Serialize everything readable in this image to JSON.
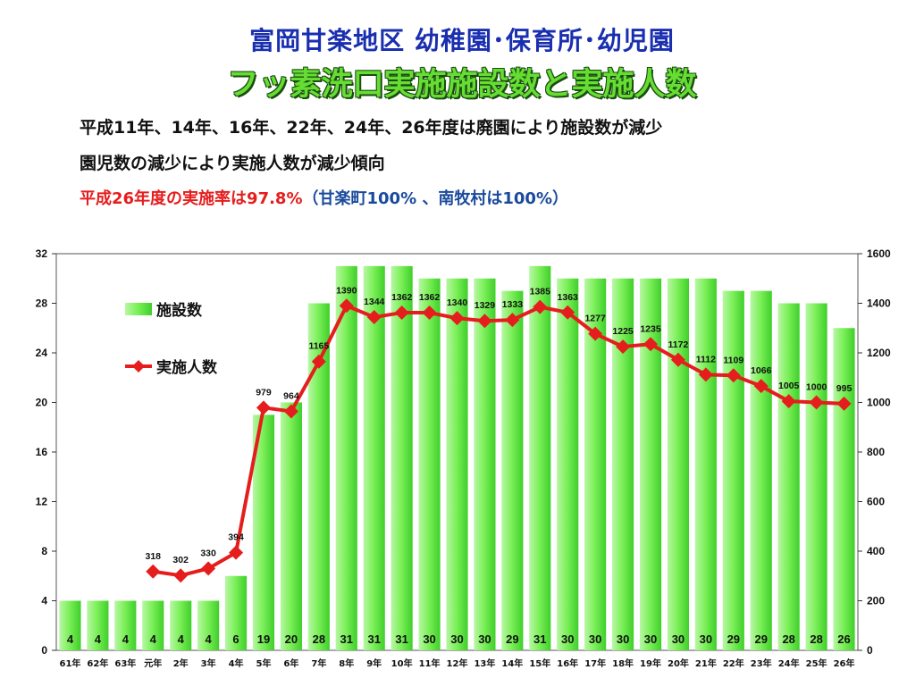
{
  "title": "富岡甘楽地区 幼稚園･保育所･幼児園",
  "subtitle": "フッ素洗口実施施設数と実施人数",
  "notes": {
    "line1": "平成11年、14年、16年、22年、24年、26年度は廃園により施設数が減少",
    "line2": "園児数の減少により実施人数が減少傾向",
    "line3_red": "平成26年度の実施率は97.8%",
    "line3_blue": "（甘楽町100% 、南牧村は100%）"
  },
  "colors": {
    "title": "#1a2fb0",
    "subtitle": "#66dd33",
    "bar": "#7df05a",
    "line": "#e51d1d",
    "note_red": "#e51d1d",
    "note_blue": "#1a4a9c"
  },
  "chart_data": {
    "type": "bar+line",
    "categories": [
      "61年",
      "62年",
      "63年",
      "元年",
      "2年",
      "3年",
      "4年",
      "5年",
      "6年",
      "7年",
      "8年",
      "9年",
      "10年",
      "11年",
      "12年",
      "13年",
      "14年",
      "15年",
      "16年",
      "17年",
      "18年",
      "19年",
      "20年",
      "21年",
      "22年",
      "23年",
      "24年",
      "25年",
      "26年"
    ],
    "series": [
      {
        "name": "施設数",
        "type": "bar",
        "axis": "left",
        "values": [
          4,
          4,
          4,
          4,
          4,
          4,
          6,
          19,
          20,
          28,
          31,
          31,
          31,
          30,
          30,
          30,
          29,
          31,
          30,
          30,
          30,
          30,
          30,
          30,
          29,
          29,
          28,
          28,
          26
        ],
        "labels": [
          "4",
          "4",
          "4",
          "4",
          "4",
          "4",
          "6",
          "19",
          "20",
          "28",
          "31",
          "31",
          "31",
          "30",
          "30",
          "30",
          "29",
          "31",
          "30",
          "30",
          "30",
          "30",
          "30",
          "30",
          "29",
          "29",
          "28",
          "28",
          "26"
        ]
      },
      {
        "name": "実施人数",
        "type": "line",
        "axis": "right",
        "values": [
          null,
          null,
          null,
          318,
          302,
          330,
          394,
          979,
          964,
          1165,
          1390,
          1344,
          1362,
          1362,
          1340,
          1329,
          1333,
          1385,
          1363,
          1277,
          1225,
          1235,
          1172,
          1112,
          1109,
          1066,
          1005,
          1000,
          995
        ],
        "labels": [
          "",
          "",
          "",
          "318",
          "302",
          "330",
          "394",
          "979",
          "964",
          "1165",
          "1390",
          "1344",
          "1362",
          "1362",
          "1340",
          "1329",
          "1333",
          "1385",
          "1363",
          "1277",
          "1225",
          "1235",
          "1172",
          "1112",
          "1109",
          "1066",
          "1005",
          "1000",
          "995"
        ]
      }
    ],
    "y_left": {
      "min": 0,
      "max": 32,
      "ticks": [
        "0",
        "4",
        "8",
        "12",
        "16",
        "20",
        "24",
        "28",
        "32"
      ]
    },
    "y_right": {
      "min": 0,
      "max": 1600,
      "ticks": [
        "0",
        "200",
        "400",
        "600",
        "800",
        "1000",
        "1200",
        "1400",
        "1600"
      ]
    },
    "legend_placement": "upper-left inside plot"
  }
}
